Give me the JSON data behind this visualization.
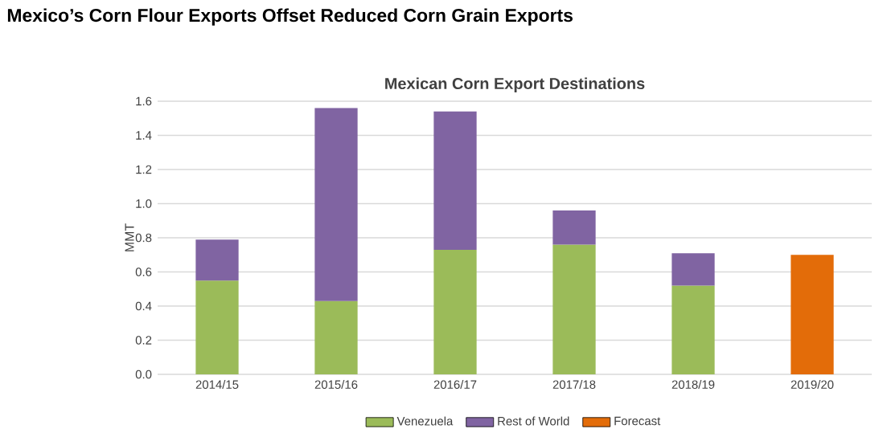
{
  "chart_data": {
    "type": "bar",
    "stacked": true,
    "title": "Mexico’s Corn Flour Exports Offset Reduced Corn Grain Exports",
    "subtitle": "Mexican Corn Export Destinations",
    "ylabel": "MMT",
    "categories": [
      "2014/15",
      "2015/16",
      "2016/17",
      "2017/18",
      "2018/19",
      "2019/20"
    ],
    "series": [
      {
        "name": "Venezuela",
        "color": "#9bbb59",
        "values": [
          0.55,
          0.43,
          0.73,
          0.76,
          0.52,
          null
        ]
      },
      {
        "name": "Rest of World",
        "color": "#8064a2",
        "values": [
          0.24,
          1.13,
          0.81,
          0.2,
          0.19,
          null
        ]
      },
      {
        "name": "Forecast",
        "color": "#e36c09",
        "values": [
          null,
          null,
          null,
          null,
          null,
          0.7
        ]
      }
    ],
    "ylim": [
      0,
      1.6
    ],
    "yticks": [
      {
        "value": 0,
        "label": "0.0"
      },
      {
        "value": 0.2,
        "label": "0.2"
      },
      {
        "value": 0.4,
        "label": "0.4"
      },
      {
        "value": 0.6,
        "label": "0.6"
      },
      {
        "value": 0.8,
        "label": "0.8"
      },
      {
        "value": 1.0,
        "label": "1.0"
      },
      {
        "value": 1.2,
        "label": "1.2"
      },
      {
        "value": 1.4,
        "label": "1.4"
      },
      {
        "value": 1.6,
        "label": "1.6"
      }
    ],
    "grid": "y",
    "legend": "bottom"
  }
}
